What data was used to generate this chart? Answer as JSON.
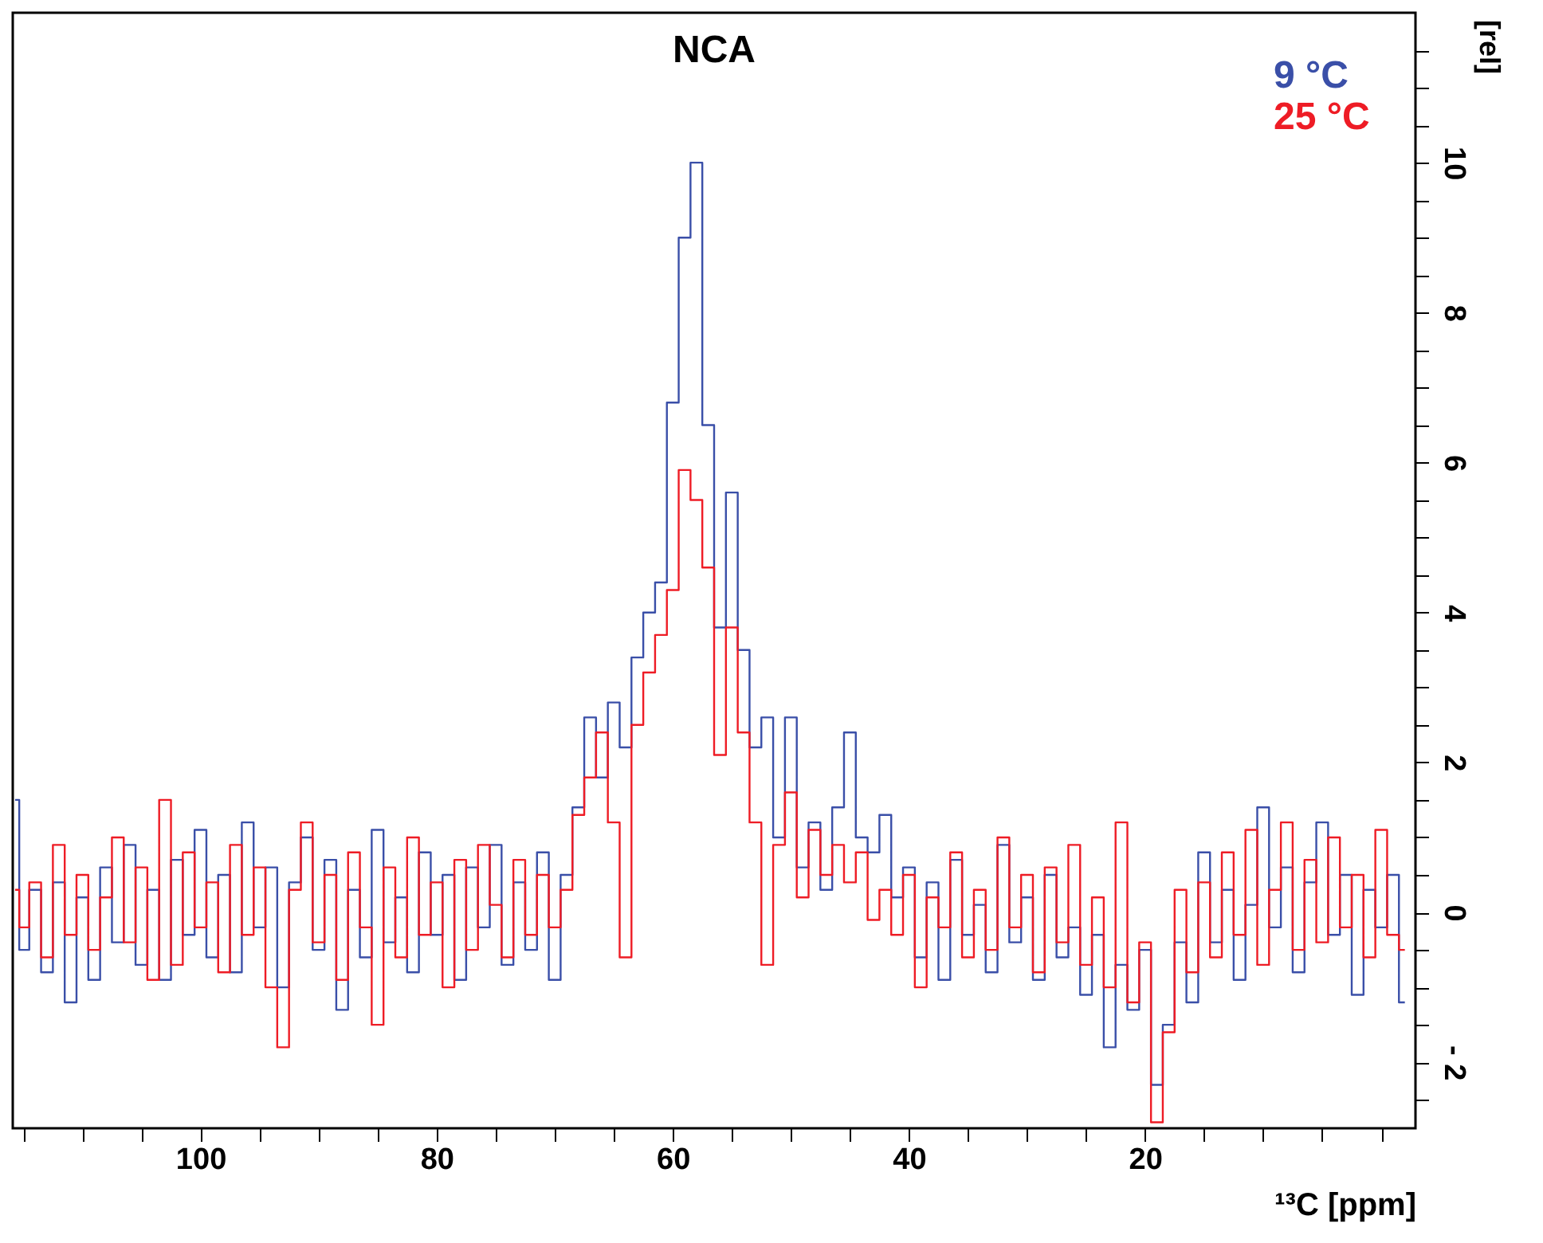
{
  "chart_data": {
    "type": "step",
    "title": "NCA",
    "xlabel": "¹³C [ppm]",
    "ylabel": "[rel]",
    "xlim": [
      115.9,
      -2.9
    ],
    "ylim": [
      -2.88,
      12
    ],
    "xticks": [
      {
        "value": 115,
        "label": null
      },
      {
        "value": 110,
        "label": null
      },
      {
        "value": 105,
        "label": null
      },
      100,
      {
        "value": 95,
        "label": null
      },
      {
        "value": 90,
        "label": null
      },
      {
        "value": 85,
        "label": null
      },
      80,
      {
        "value": 75,
        "label": null
      },
      {
        "value": 70,
        "label": null
      },
      {
        "value": 65,
        "label": null
      },
      60,
      {
        "value": 55,
        "label": null
      },
      {
        "value": 50,
        "label": null
      },
      {
        "value": 45,
        "label": null
      },
      40,
      {
        "value": 35,
        "label": null
      },
      {
        "value": 30,
        "label": null
      },
      {
        "value": 25,
        "label": null
      },
      20,
      {
        "value": 15,
        "label": null
      },
      {
        "value": 10,
        "label": null
      },
      {
        "value": 5,
        "label": null
      },
      {
        "value": 0,
        "label": null
      }
    ],
    "yticks": [
      {
        "value": -2.5,
        "label": null
      },
      {
        "value": -2,
        "label": "- 2"
      },
      {
        "value": -1.5,
        "label": null
      },
      {
        "value": -1,
        "label": null
      },
      {
        "value": -0.5,
        "label": null
      },
      0,
      {
        "value": 0.5,
        "label": null
      },
      {
        "value": 1,
        "label": null
      },
      {
        "value": 1.5,
        "label": null
      },
      2,
      {
        "value": 2.5,
        "label": null
      },
      {
        "value": 3,
        "label": null
      },
      {
        "value": 3.5,
        "label": null
      },
      4,
      {
        "value": 4.5,
        "label": null
      },
      {
        "value": 5,
        "label": null
      },
      {
        "value": 5.5,
        "label": null
      },
      6,
      {
        "value": 6.5,
        "label": null
      },
      {
        "value": 7,
        "label": null
      },
      {
        "value": 7.5,
        "label": null
      },
      8,
      {
        "value": 8.5,
        "label": null
      },
      {
        "value": 9,
        "label": null
      },
      {
        "value": 9.5,
        "label": null
      },
      10,
      {
        "value": 10.5,
        "label": null
      },
      {
        "value": 11,
        "label": null
      },
      {
        "value": 11.5,
        "label": null
      }
    ],
    "x": [
      115.7,
      115,
      114,
      113,
      112,
      111,
      110,
      109,
      108,
      107,
      106,
      105,
      104,
      103,
      102,
      101,
      100,
      99,
      98,
      97,
      96,
      95,
      94,
      93,
      92,
      91,
      90,
      89,
      88,
      87,
      86,
      85,
      84,
      83,
      82,
      81,
      80,
      79,
      78,
      77,
      76,
      75,
      74,
      73,
      72,
      71,
      70,
      69,
      68,
      67,
      66,
      65,
      64,
      63,
      62,
      61,
      60,
      59,
      58,
      57,
      56,
      55,
      54,
      53,
      52,
      51,
      50,
      49,
      48,
      47,
      46,
      45,
      44,
      43,
      42,
      41,
      40,
      39,
      38,
      37,
      36,
      35,
      34,
      33,
      32,
      31,
      30,
      29,
      28,
      27,
      26,
      25,
      24,
      23,
      22,
      21,
      20,
      19,
      18,
      17,
      16,
      15,
      14,
      13,
      12,
      11,
      10,
      9,
      8,
      7,
      6,
      5,
      4,
      3,
      2,
      1,
      0,
      -1,
      -2
    ],
    "legend": "top right",
    "grid": false,
    "series": [
      {
        "name": "9 °C",
        "color": "#3a4fa8",
        "values": [
          1.5,
          -0.5,
          0.3,
          -0.8,
          0.4,
          -1.2,
          0.2,
          -0.9,
          0.6,
          -0.4,
          0.9,
          -0.7,
          0.3,
          -0.9,
          0.7,
          -0.3,
          1.1,
          -0.6,
          0.5,
          -0.8,
          1.2,
          -0.2,
          0.6,
          -1.0,
          0.4,
          1.0,
          -0.5,
          0.7,
          -1.3,
          0.3,
          -0.6,
          1.1,
          -0.4,
          0.2,
          -0.8,
          0.8,
          -0.3,
          0.5,
          -0.9,
          0.6,
          -0.2,
          0.9,
          -0.7,
          0.4,
          -0.5,
          0.8,
          -0.9,
          0.5,
          1.4,
          2.6,
          1.8,
          2.8,
          2.2,
          3.4,
          4.0,
          4.4,
          6.8,
          9.0,
          10.0,
          6.5,
          3.8,
          5.6,
          3.5,
          2.2,
          2.6,
          1.0,
          2.6,
          0.6,
          1.2,
          0.3,
          1.4,
          2.4,
          1.0,
          0.8,
          1.3,
          0.2,
          0.6,
          -0.6,
          0.4,
          -0.9,
          0.7,
          -0.3,
          0.1,
          -0.8,
          0.9,
          -0.4,
          0.2,
          -0.9,
          0.5,
          -0.6,
          -0.2,
          -1.1,
          -0.3,
          -1.8,
          -0.7,
          -1.3,
          -0.5,
          -2.3,
          -1.5,
          -0.4,
          -1.2,
          0.8,
          -0.4,
          0.3,
          -0.9,
          0.1,
          1.4,
          -0.2,
          0.6,
          -0.8,
          0.4,
          1.2,
          -0.3,
          0.5,
          -1.1,
          0.3,
          -0.2,
          0.5,
          -1.2
        ]
      },
      {
        "name": "25 °C",
        "color": "#ee1c25",
        "values": [
          0.3,
          -0.2,
          0.4,
          -0.6,
          0.9,
          -0.3,
          0.5,
          -0.5,
          0.2,
          1.0,
          -0.4,
          0.6,
          -0.9,
          1.5,
          -0.7,
          0.8,
          -0.2,
          0.4,
          -0.8,
          0.9,
          -0.3,
          0.6,
          -1.0,
          -1.8,
          0.3,
          1.2,
          -0.4,
          0.5,
          -0.9,
          0.8,
          -0.2,
          -1.5,
          0.6,
          -0.6,
          1.0,
          -0.3,
          0.4,
          -1.0,
          0.7,
          -0.5,
          0.9,
          0.1,
          -0.6,
          0.7,
          -0.3,
          0.5,
          -0.2,
          0.3,
          1.3,
          1.8,
          2.4,
          1.2,
          -0.6,
          2.5,
          3.2,
          3.7,
          4.3,
          5.9,
          5.5,
          4.6,
          2.1,
          3.8,
          2.4,
          1.2,
          -0.7,
          0.9,
          1.6,
          0.2,
          1.1,
          0.5,
          0.9,
          0.4,
          0.8,
          -0.1,
          0.3,
          -0.3,
          0.5,
          -1.0,
          0.2,
          -0.2,
          0.8,
          -0.6,
          0.3,
          -0.5,
          1.0,
          -0.2,
          0.5,
          -0.8,
          0.6,
          -0.4,
          0.9,
          -0.7,
          0.2,
          -1.0,
          1.2,
          -1.2,
          -0.4,
          -2.8,
          -1.6,
          0.3,
          -0.8,
          0.4,
          -0.6,
          0.8,
          -0.3,
          1.1,
          -0.7,
          0.3,
          1.2,
          -0.5,
          0.7,
          -0.4,
          1.0,
          -0.2,
          0.5,
          -0.6,
          1.1,
          -0.3,
          -0.5
        ]
      }
    ]
  }
}
